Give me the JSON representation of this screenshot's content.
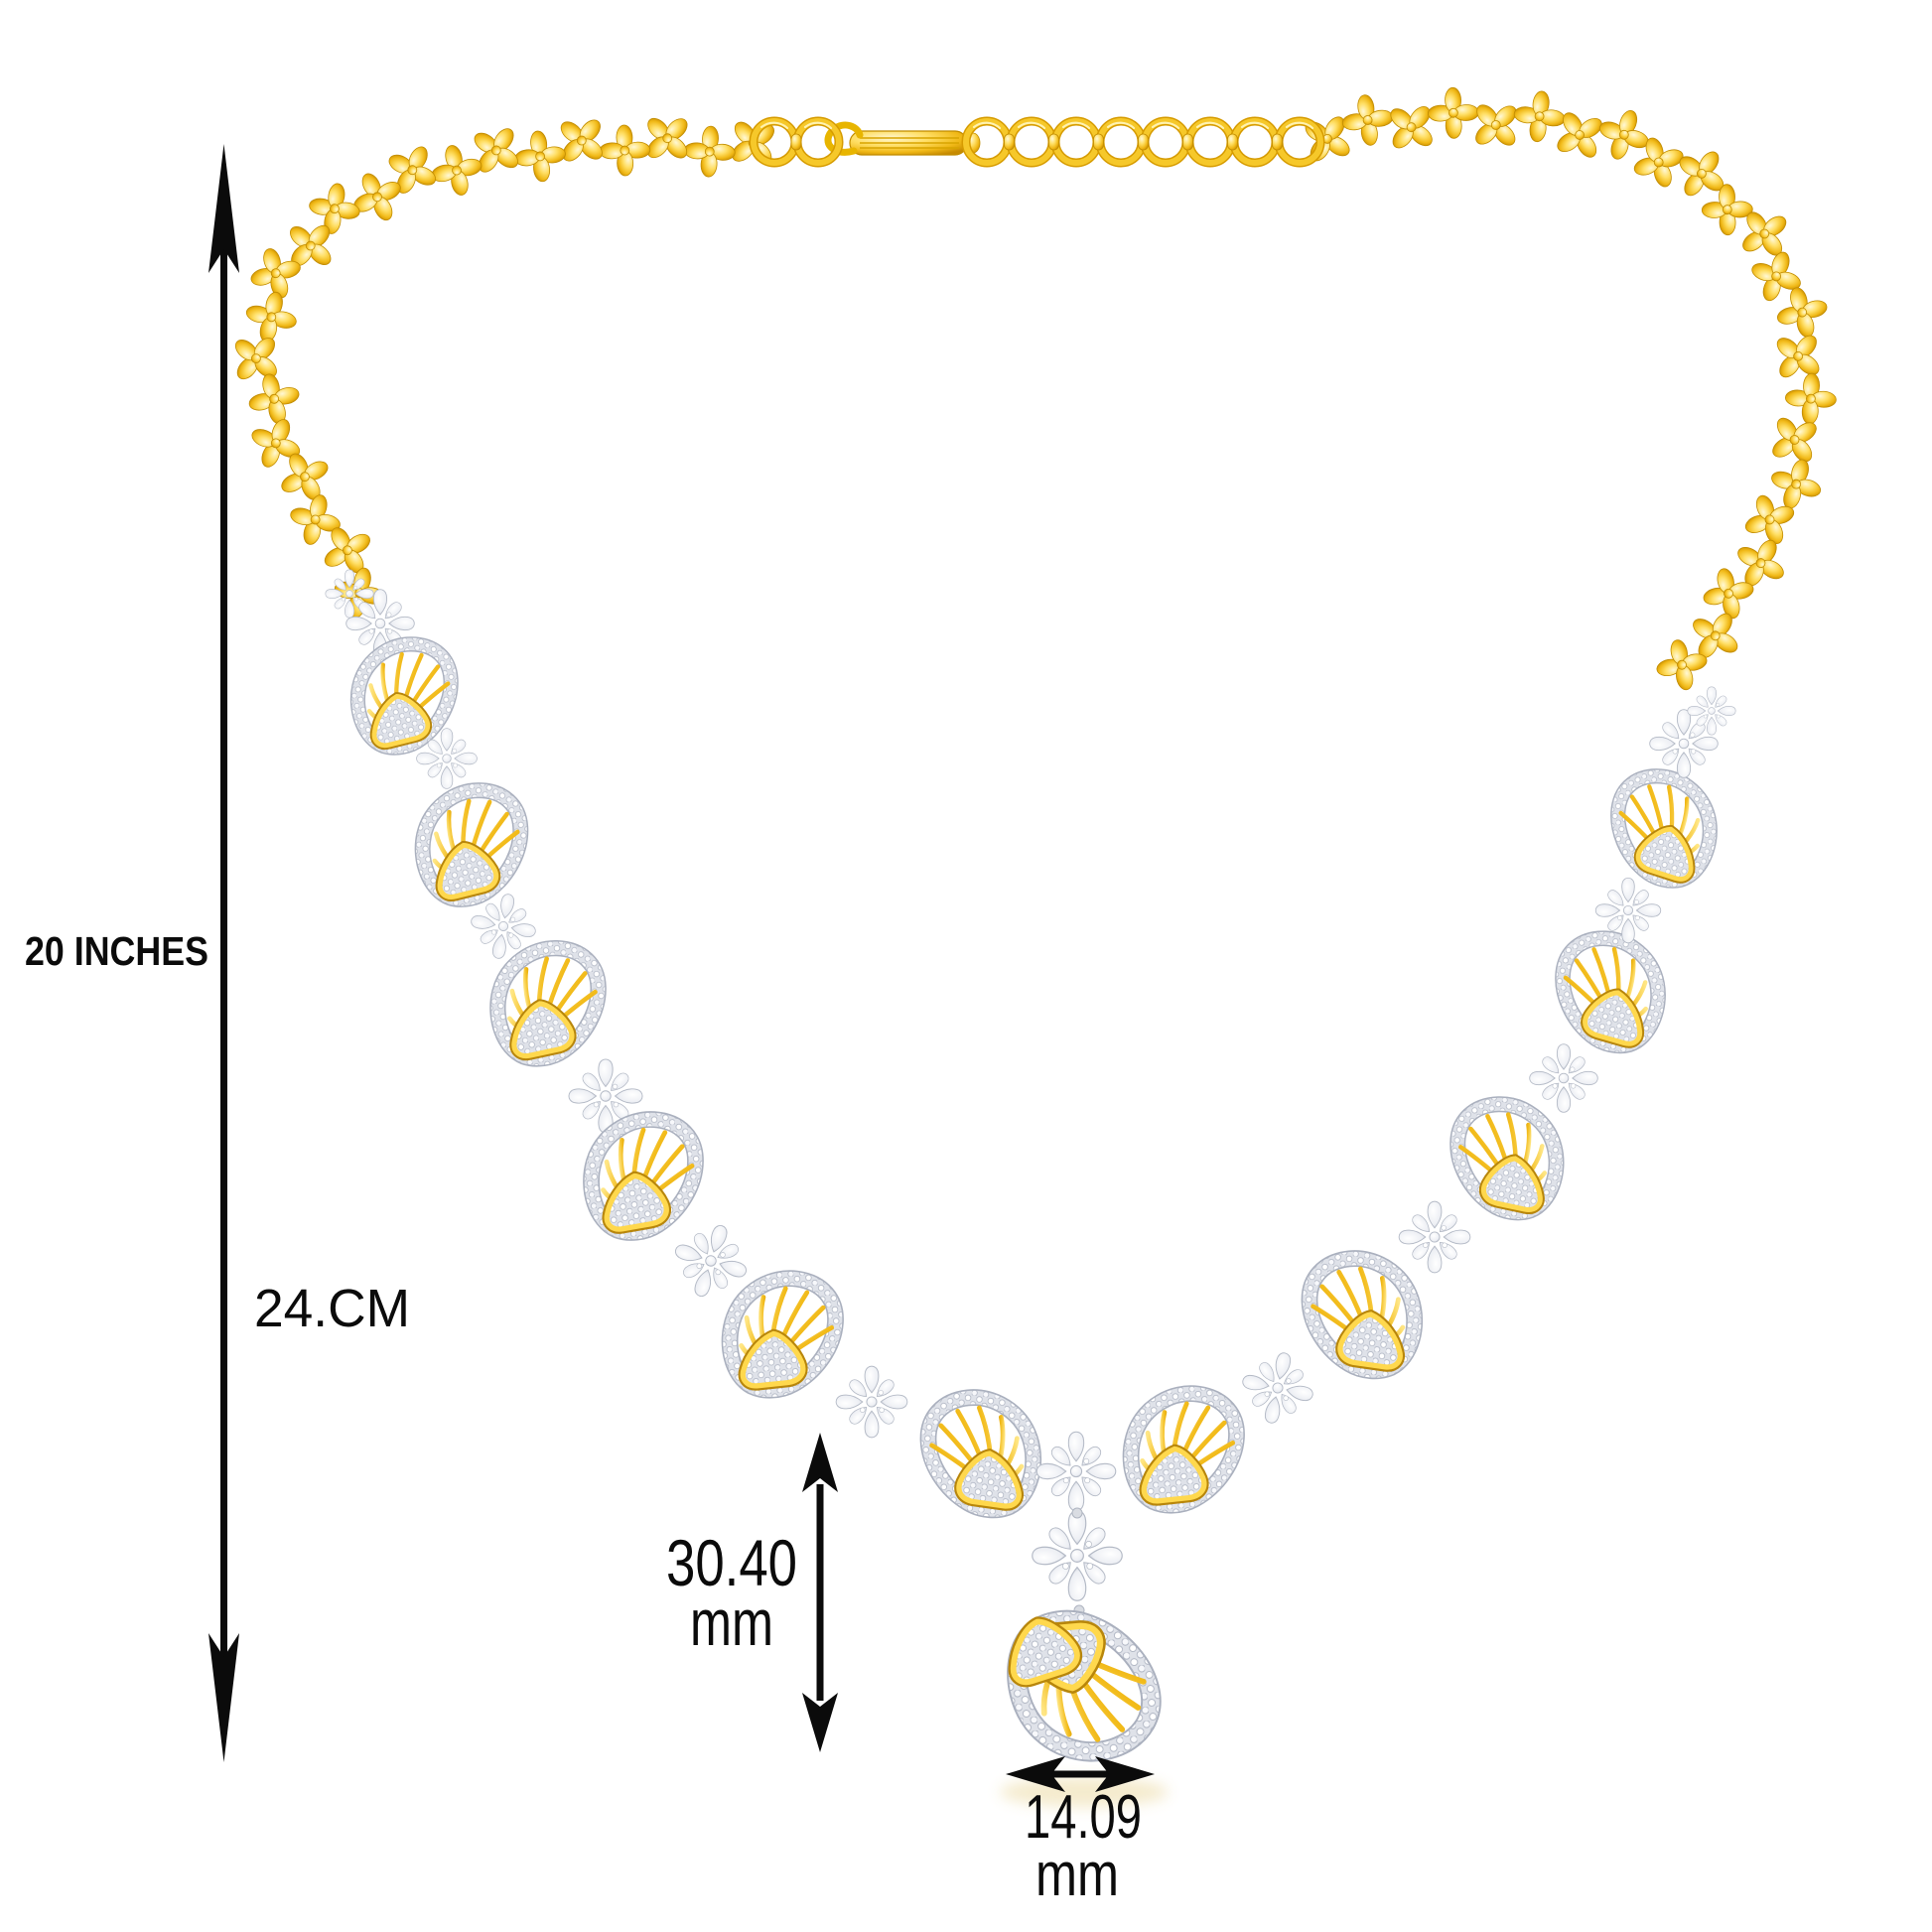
{
  "page": {
    "type": "jewelry-product-measurement-image",
    "background": "#FFFFFF"
  },
  "product": {
    "description": "Gold and diamond necklace with floral link chain, diamond fan motifs, snowflake clusters and a fan drop pendant"
  },
  "measurements": {
    "chain_length_label": "20 INCHES",
    "drop_length_label": "24.CM",
    "pendant_height": {
      "value": "30.40",
      "unit": "mm"
    },
    "pendant_width": {
      "value": "14.09",
      "unit": "mm"
    }
  },
  "icons": {
    "vertical_dimension_arrow": "double-headed vertical arrow",
    "pendant_height_arrow": "double-headed vertical arrow",
    "pendant_width_arrow": "double-headed horizontal arrow"
  },
  "colors": {
    "gold": "#F2BB1A",
    "gold_highlight": "#FFF8D6",
    "gold_dark": "#C68A00",
    "diamond": "#EDEFF4",
    "diamond_shadow": "#C3C8D4",
    "annotation": "#0B0B0B"
  }
}
